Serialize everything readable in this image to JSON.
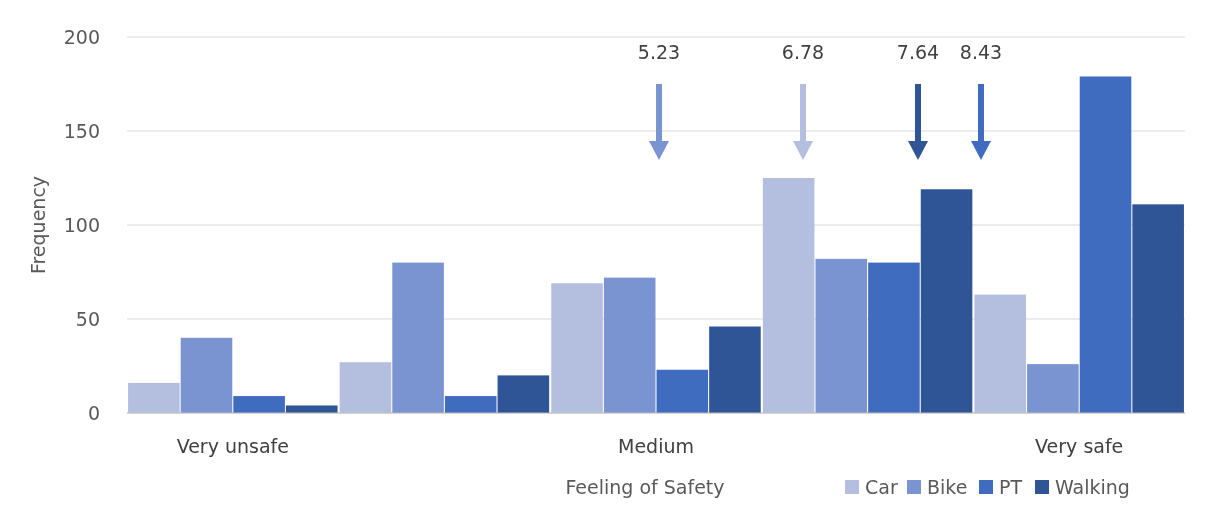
{
  "chart_data": {
    "type": "bar",
    "xlabel": "Feeling of Safety",
    "ylabel": "Frequency",
    "categories": [
      "Very unsafe",
      null,
      "Medium",
      null,
      "Very safe"
    ],
    "series": [
      {
        "name": "Car",
        "color": "#b4bfe0",
        "values": [
          16,
          27,
          69,
          125,
          63
        ]
      },
      {
        "name": "Bike",
        "color": "#7a93d1",
        "values": [
          40,
          80,
          72,
          82,
          26
        ]
      },
      {
        "name": "PT",
        "color": "#3f6cbf",
        "values": [
          9,
          9,
          23,
          80,
          179
        ]
      },
      {
        "name": "Walking",
        "color": "#2f5597",
        "values": [
          4,
          20,
          46,
          119,
          111
        ]
      }
    ],
    "ylim": [
      0,
      200
    ],
    "yticks": [
      0,
      50,
      100,
      150,
      200
    ],
    "grid": "y",
    "legend": "bottom right",
    "annotations": [
      "5.23",
      "6.78",
      "7.64",
      "8.43"
    ]
  }
}
